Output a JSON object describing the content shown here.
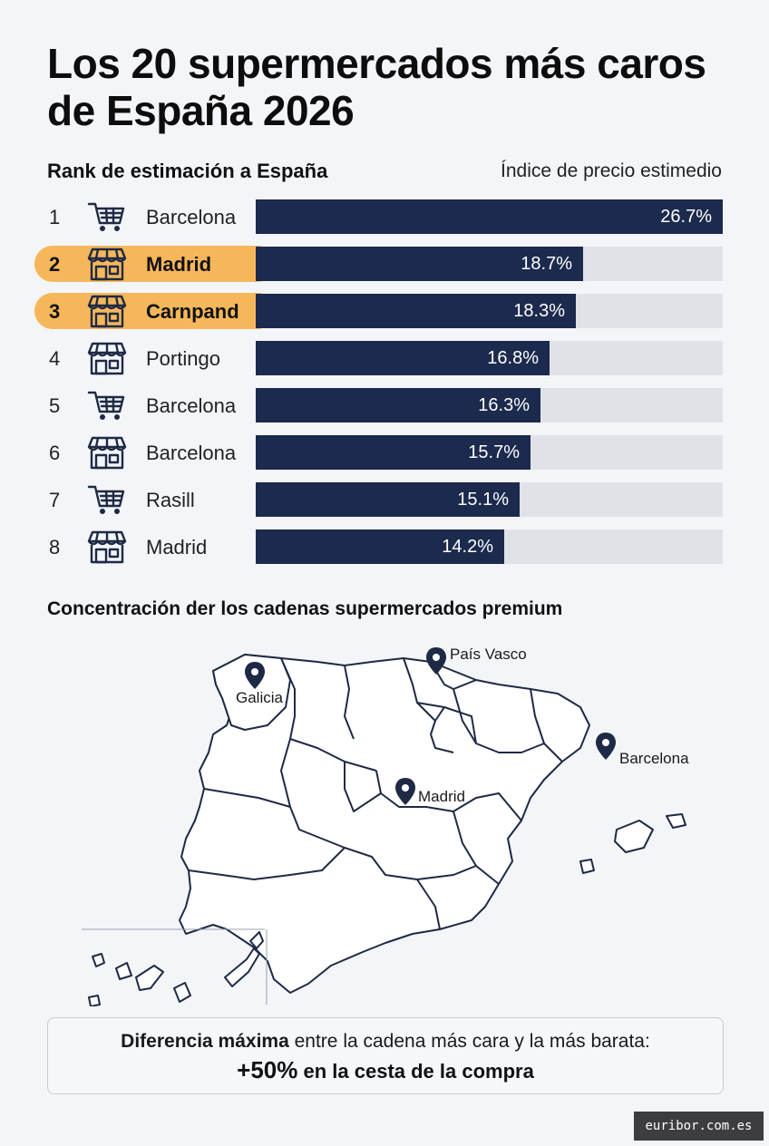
{
  "title": "Los 20 supermercados más caros de España 2026",
  "rank_header": "Rank de estimación a España",
  "index_header": "Índice de precio estimedio",
  "chart_data": {
    "type": "bar",
    "orientation": "horizontal",
    "xlim": [
      0,
      26.7
    ],
    "rows": [
      {
        "rank": "1",
        "name": "Barcelona",
        "icon": "shopping-cart-icon",
        "value": 26.7,
        "label": "26.7%",
        "highlight": false
      },
      {
        "rank": "2",
        "name": "Madrid",
        "icon": "storefront-icon",
        "value": 18.7,
        "label": "18.7%",
        "highlight": true
      },
      {
        "rank": "3",
        "name": "Carnpand",
        "icon": "storefront-icon",
        "value": 18.3,
        "label": "18.3%",
        "highlight": true
      },
      {
        "rank": "4",
        "name": "Portingo",
        "icon": "storefront-icon",
        "value": 16.8,
        "label": "16.8%",
        "highlight": false
      },
      {
        "rank": "5",
        "name": "Barcelona",
        "icon": "shopping-cart-icon",
        "value": 16.3,
        "label": "16.3%",
        "highlight": false
      },
      {
        "rank": "6",
        "name": "Barcelona",
        "icon": "storefront-icon",
        "value": 15.7,
        "label": "15.7%",
        "highlight": false
      },
      {
        "rank": "7",
        "name": "Rasill",
        "icon": "shopping-cart-icon",
        "value": 15.1,
        "label": "15.1%",
        "highlight": false
      },
      {
        "rank": "8",
        "name": "Madrid",
        "icon": "storefront-icon",
        "value": 14.2,
        "label": "14.2%",
        "highlight": false
      }
    ]
  },
  "map": {
    "title": "Concentración der los cadenas supermercados premium",
    "markers": [
      {
        "name": "País Vasco"
      },
      {
        "name": "Galicia"
      },
      {
        "name": "Barcelona"
      },
      {
        "name": "Madrid"
      }
    ]
  },
  "callout": {
    "bold_prefix": "Diferencia máxima",
    "text": " entre la cadena más cara y la más barata:",
    "big": "+50%",
    "suffix": " en la cesta de la compra"
  },
  "source_badge": "euribor.com.es",
  "colors": {
    "bar": "#1b2a4d",
    "track": "#dfe2e7",
    "highlight": "#f6b75a",
    "background": "#f3f5f8"
  }
}
